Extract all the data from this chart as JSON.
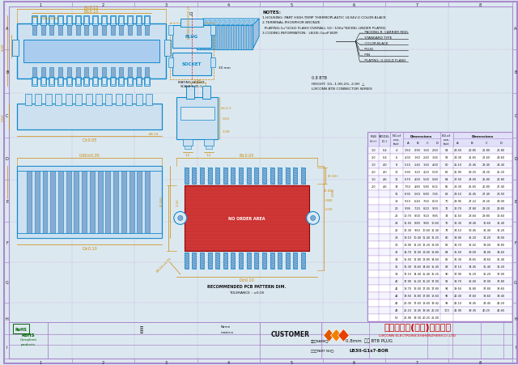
{
  "bg_color": "#dce8f0",
  "border_color": "#aa88cc",
  "draw_color": "#1188cc",
  "orange_color": "#cc8800",
  "red_color": "#cc2222",
  "black": "#111111",
  "notes": [
    "1.HOUSING: PART HIGH-TEMP THERMOPLASTIC UL94V-0 COLOR:BLACK",
    "2.TERMINAL:PHOSPHOR BRONZE",
    "  PLATING:1u\"GOLD FLASH OVERALL 50~100u\"NICKEL UNDER PLATED.",
    "3.CODING INFORMATION:  LB3I0-GxxP-BOR"
  ],
  "coding_labels": [
    "PACKING:R: CARRIER REEL",
    "STANDARD TYPE",
    "COLOR:BLACK",
    "PLUG",
    "PIN",
    "PLATING: G:GOLD FLASH"
  ],
  "spec_label": "0.8 BTB",
  "height_label": "HEIGHT: 1G--1.0H,2G--2.0H  △",
  "series_label": "LIXCONN BTB CONNECTOR SERIES",
  "company_cn": "连兴旺电子(深圳)有限公司",
  "company_en": "LIXCONN ELECTRONICS(SHENZHEN)CO.,LTD",
  "title_name": "0.8mm 双槽 BTB PLUG",
  "part_no": "LB3II-G1x7-BOR",
  "customer": "CUSTOMER",
  "rohs": "RoHS\nCompliant\nproducts",
  "rec_pcb": "RECOMMENDED PCB PATTERN DIM.",
  "tolerance": "TOLERANCE : ±0.05",
  "table_data": [
    [
      "1.0",
      "0.4",
      "4",
      "3.50",
      "0.90",
      "1.60",
      "2.60",
      "54",
      "23.50",
      "20.85",
      "21.80",
      "22.80"
    ],
    [
      "2.0",
      "0.4",
      "6",
      "4.30",
      "1.60",
      "2.40",
      "3.45",
      "58",
      "24.30",
      "21.65",
      "22.60",
      "23.60"
    ],
    [
      "1.0",
      "4.0",
      "8",
      "5.10",
      "2.40",
      "3.40",
      "4.00",
      "60",
      "25.10",
      "22.45",
      "23.40",
      "24.40"
    ],
    [
      "2.0",
      "4.0",
      "10",
      "5.90",
      "3.20",
      "4.20",
      "5.00",
      "62",
      "25.90",
      "23.25",
      "24.20",
      "25.20"
    ],
    [
      "1.0",
      "4.6",
      "12",
      "6.70",
      "4.00",
      "5.00",
      "5.80",
      "64",
      "27.50",
      "24.00",
      "25.80",
      "26.80"
    ],
    [
      "2.0",
      "4.6",
      "14",
      "7.50",
      "4.80",
      "5.80",
      "6.02",
      "66",
      "28.30",
      "25.65",
      "26.80",
      "27.40"
    ],
    [
      "",
      "",
      "16",
      "8.30",
      "5.60",
      "6.80",
      "7.45",
      "68",
      "29.10",
      "26.45",
      "27.40",
      "28.50"
    ],
    [
      "",
      "",
      "18",
      "9.10",
      "6.40",
      "7.60",
      "8.20",
      "70",
      "29.95",
      "27.22",
      "28.20",
      "29.00"
    ],
    [
      "",
      "",
      "20",
      "9.95",
      "7.20",
      "8.20",
      "9.00",
      "72",
      "30.70",
      "27.80",
      "29.20",
      "29.80"
    ],
    [
      "",
      "",
      "22",
      "10.70",
      "8.00",
      "9.20",
      "9.85",
      "74",
      "31.50",
      "28.60",
      "29.80",
      "30.60"
    ],
    [
      "",
      "",
      "24",
      "11.50",
      "8.80",
      "9.80",
      "10.60",
      "76",
      "32.30",
      "29.40",
      "30.60",
      "31.40"
    ],
    [
      "",
      "",
      "26",
      "12.30",
      "9.60",
      "10.60",
      "11.40",
      "78",
      "33.10",
      "30.45",
      "31.40",
      "32.20"
    ],
    [
      "",
      "",
      "28",
      "13.10",
      "10.40",
      "11.40",
      "12.25",
      "80",
      "33.90",
      "31.20",
      "32.20",
      "33.00"
    ],
    [
      "",
      "",
      "30",
      "13.90",
      "11.20",
      "12.20",
      "13.00",
      "82",
      "34.70",
      "32.02",
      "33.00",
      "33.80"
    ],
    [
      "",
      "",
      "32",
      "14.70",
      "12.00",
      "13.00",
      "13.80",
      "84",
      "35.50",
      "33.00",
      "34.00",
      "34.60"
    ],
    [
      "",
      "",
      "34",
      "15.50",
      "12.80",
      "13.80",
      "14.60",
      "86",
      "36.30",
      "33.65",
      "34.60",
      "35.40"
    ],
    [
      "",
      "",
      "36",
      "16.30",
      "13.60",
      "14.60",
      "15.45",
      "88",
      "37.10",
      "34.45",
      "35.40",
      "36.20"
    ],
    [
      "",
      "",
      "38",
      "17.10",
      "14.40",
      "15.40",
      "16.25",
      "90",
      "37.90",
      "35.20",
      "36.20",
      "37.00"
    ],
    [
      "",
      "",
      "40",
      "17.90",
      "15.20",
      "16.20",
      "17.00",
      "92",
      "38.70",
      "36.00",
      "37.00",
      "37.80"
    ],
    [
      "",
      "",
      "42",
      "18.70",
      "16.00",
      "17.00",
      "17.80",
      "94",
      "39.50",
      "36.80",
      "37.80",
      "38.60"
    ],
    [
      "",
      "",
      "44",
      "19.50",
      "16.80",
      "17.80",
      "18.60",
      "96",
      "40.30",
      "37.60",
      "38.60",
      "39.40"
    ],
    [
      "",
      "",
      "46",
      "20.30",
      "17.60",
      "18.60",
      "19.42",
      "98",
      "41.10",
      "38.45",
      "39.45",
      "40.20"
    ],
    [
      "",
      "",
      "48",
      "21.10",
      "18.45",
      "19.45",
      "20.20",
      "100",
      "41.90",
      "39.35",
      "40.25",
      "41.60"
    ],
    [
      "",
      "",
      "50",
      "21.90",
      "19.30",
      "20.25",
      "21.00",
      "",
      "",
      "",
      "",
      ""
    ]
  ]
}
